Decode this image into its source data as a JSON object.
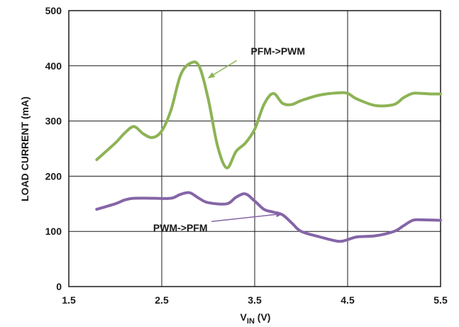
{
  "chart_data": {
    "type": "line",
    "xlabel_main": "V",
    "xlabel_sub": "IN",
    "xlabel_unit": " (V)",
    "ylabel": "LOAD CURRENT (mA)",
    "xlim": [
      1.5,
      5.5
    ],
    "ylim": [
      0,
      500
    ],
    "x_ticks": [
      1.5,
      2.5,
      3.5,
      4.5,
      5.5
    ],
    "x_tick_labels": [
      "1.5",
      "2.5",
      "3.5",
      "4.5",
      "5.5"
    ],
    "y_ticks": [
      0,
      100,
      200,
      300,
      400,
      500
    ],
    "y_tick_labels": [
      "0",
      "100",
      "200",
      "300",
      "400",
      "500"
    ],
    "grid": true,
    "series": [
      {
        "color": "#8db355",
        "x": [
          1.8,
          2.0,
          2.1,
          2.2,
          2.3,
          2.4,
          2.5,
          2.6,
          2.7,
          2.8,
          2.9,
          3.0,
          3.1,
          3.2,
          3.3,
          3.4,
          3.5,
          3.6,
          3.7,
          3.8,
          3.9,
          4.0,
          4.2,
          4.4,
          4.5,
          4.6,
          4.8,
          5.0,
          5.1,
          5.2,
          5.3,
          5.4,
          5.5
        ],
        "y": [
          230,
          260,
          278,
          290,
          277,
          270,
          282,
          320,
          382,
          404,
          400,
          340,
          255,
          215,
          245,
          260,
          285,
          330,
          350,
          332,
          330,
          337,
          347,
          351,
          350,
          340,
          328,
          330,
          342,
          350,
          350,
          349,
          349
        ]
      },
      {
        "color": "#8565a7",
        "x": [
          1.8,
          2.0,
          2.1,
          2.2,
          2.4,
          2.6,
          2.7,
          2.8,
          2.9,
          3.0,
          3.2,
          3.3,
          3.4,
          3.5,
          3.6,
          3.7,
          3.8,
          3.9,
          4.0,
          4.2,
          4.4,
          4.5,
          4.6,
          4.8,
          5.0,
          5.1,
          5.2,
          5.3,
          5.5
        ],
        "y": [
          140,
          150,
          157,
          160,
          160,
          160,
          167,
          170,
          160,
          152,
          150,
          162,
          168,
          155,
          140,
          135,
          130,
          115,
          100,
          90,
          82,
          85,
          90,
          92,
          100,
          110,
          120,
          121,
          120
        ]
      }
    ],
    "annotations": [
      {
        "text": "PFM->PWM",
        "text_x": 3.75,
        "text_y": 420,
        "arrow_to_x": 3.0,
        "arrow_to_y": 378
      },
      {
        "text": "PWM->PFM",
        "text_x": 2.7,
        "text_y": 100,
        "arrow_to_x": 3.8,
        "arrow_to_y": 132
      }
    ]
  }
}
